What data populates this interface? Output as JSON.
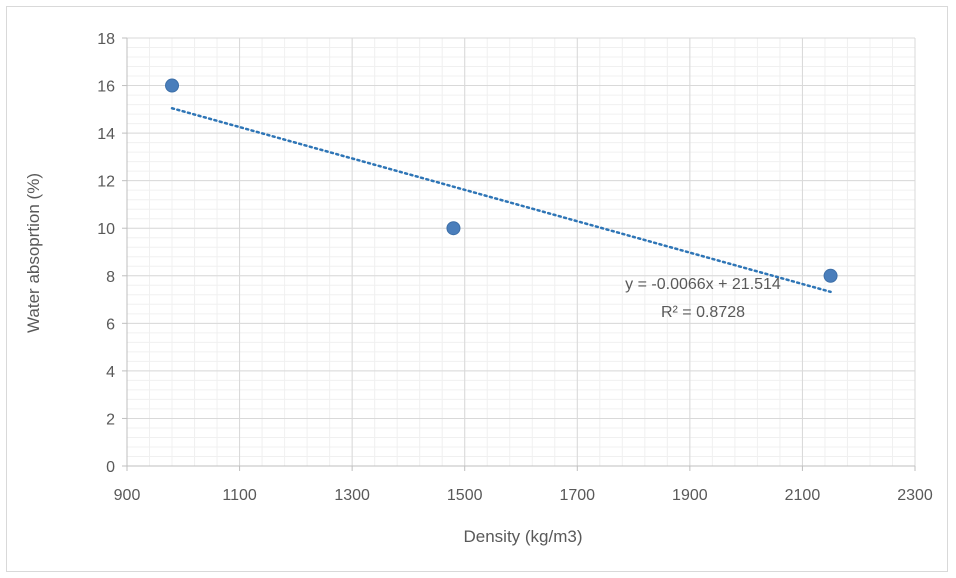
{
  "chart_data": {
    "type": "scatter",
    "title": "",
    "xlabel": "Density (kg/m3)",
    "ylabel": "Water absoprtion (%)",
    "xlim": [
      900,
      2300
    ],
    "ylim": [
      0,
      18
    ],
    "xticks": [
      900,
      1100,
      1300,
      1500,
      1700,
      1900,
      2100,
      2300
    ],
    "yticks": [
      0,
      2,
      4,
      6,
      8,
      10,
      12,
      14,
      16,
      18
    ],
    "grid": true,
    "legend": "none",
    "series": [
      {
        "x": [
          980,
          1480,
          2150
        ],
        "y": [
          16,
          10,
          8
        ],
        "color": "#4a7ebb"
      }
    ],
    "trendline": {
      "slope": -0.0066,
      "intercept": 21.514,
      "x_range": [
        980,
        2150
      ],
      "equation": "y = -0.0066x + 21.514",
      "r_squared": "R² = 0.8728",
      "color": "#2e75b6"
    }
  }
}
